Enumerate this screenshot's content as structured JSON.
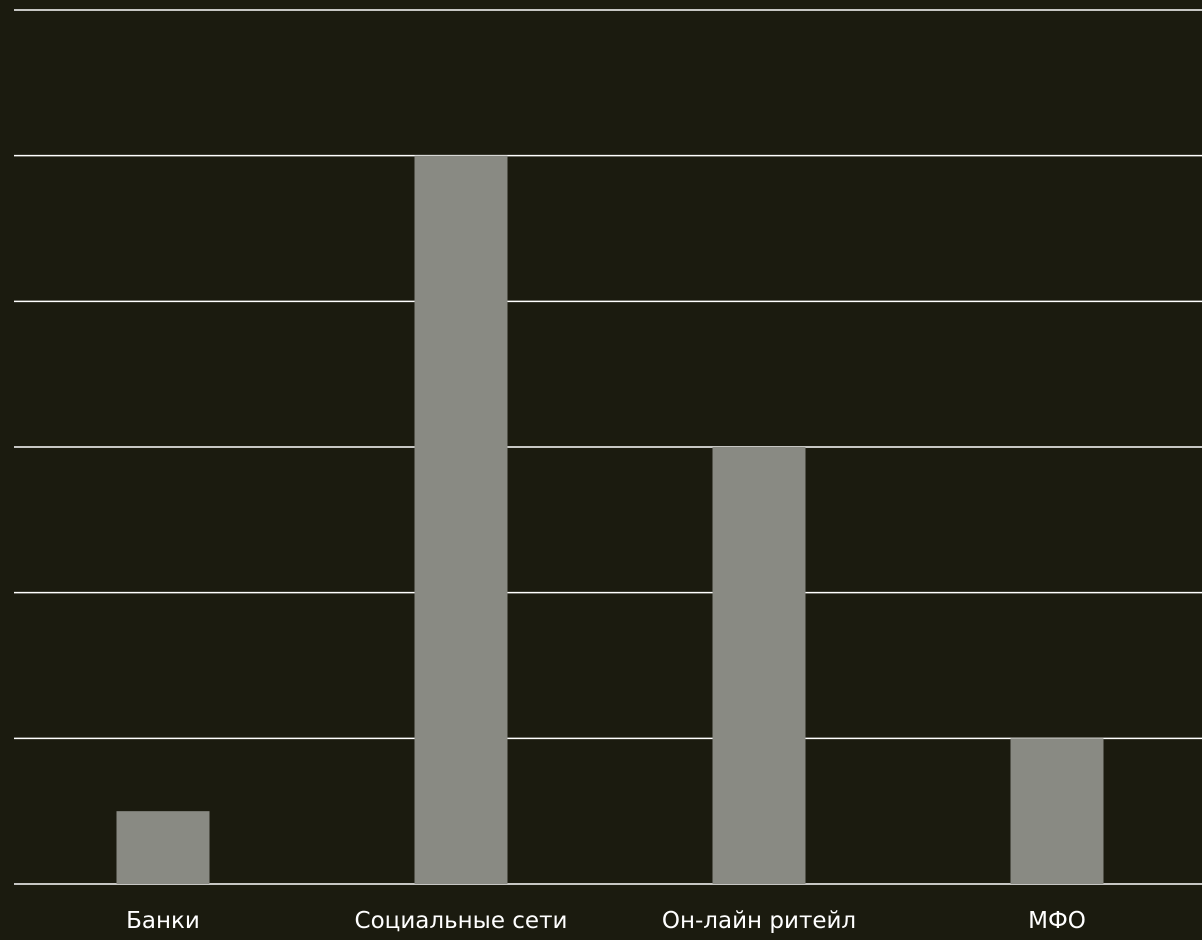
{
  "chart_data": {
    "type": "bar",
    "title": "",
    "xlabel": "",
    "ylabel": "",
    "categories": [
      "Банки",
      "Социальные сети",
      "Он-лайн ритейл",
      "МФО"
    ],
    "values": [
      0.5,
      5,
      3,
      1
    ],
    "ylim": [
      0,
      6
    ],
    "yticks": [
      0,
      1,
      2,
      3,
      4,
      5,
      6
    ],
    "grid": true,
    "legend": "none",
    "bar_color": "#898a83",
    "background_color": "#1b1b0f",
    "gridline_color": "#ffffff",
    "label_color": "#ffffff"
  }
}
